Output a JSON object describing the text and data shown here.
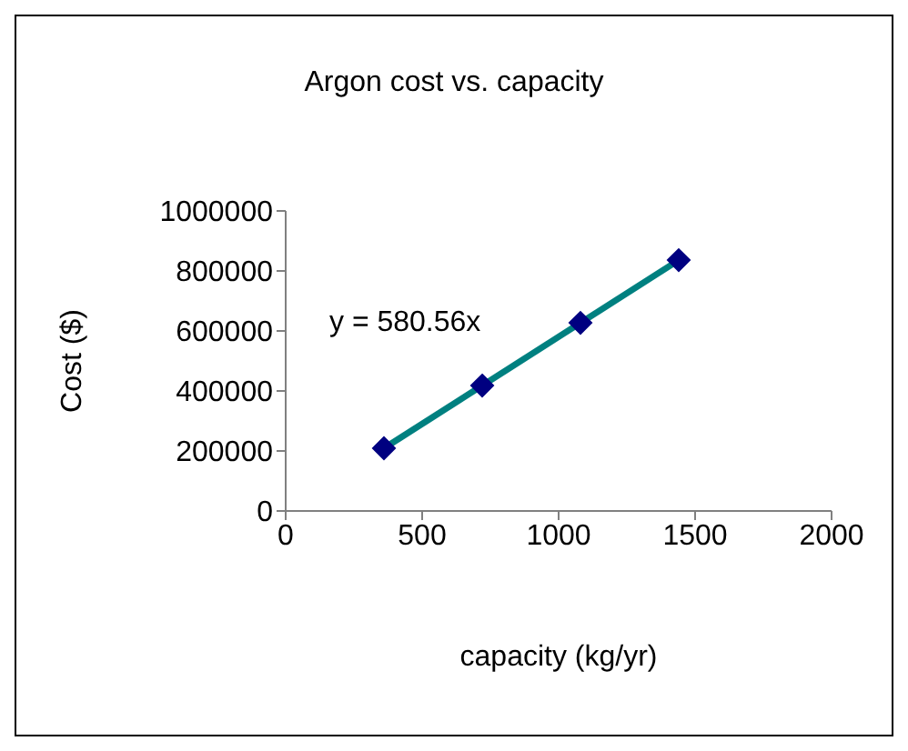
{
  "chart_data": {
    "type": "scatter",
    "title": "Argon cost vs. capacity",
    "xlabel": "capacity (kg/yr)",
    "ylabel": "Cost ($)",
    "x": [
      360,
      720,
      1080,
      1440
    ],
    "series": [
      {
        "type": "scatter",
        "color": "#000080",
        "values": [
          209000,
          418000,
          627000,
          836000
        ],
        "marker": "diamond"
      },
      {
        "type": "line",
        "color": "#008080",
        "x": [
          360,
          1440
        ],
        "values": [
          209000,
          836000
        ],
        "marker": "none"
      }
    ],
    "annotations": [
      "y = 580.56x"
    ],
    "xlim": [
      0,
      2000
    ],
    "xticks": [
      0,
      500,
      1000,
      1500,
      2000
    ],
    "ylim": [
      0,
      1000000
    ],
    "yticks": [
      0,
      200000,
      400000,
      600000,
      800000,
      1000000
    ],
    "grid": false,
    "legend": false
  }
}
